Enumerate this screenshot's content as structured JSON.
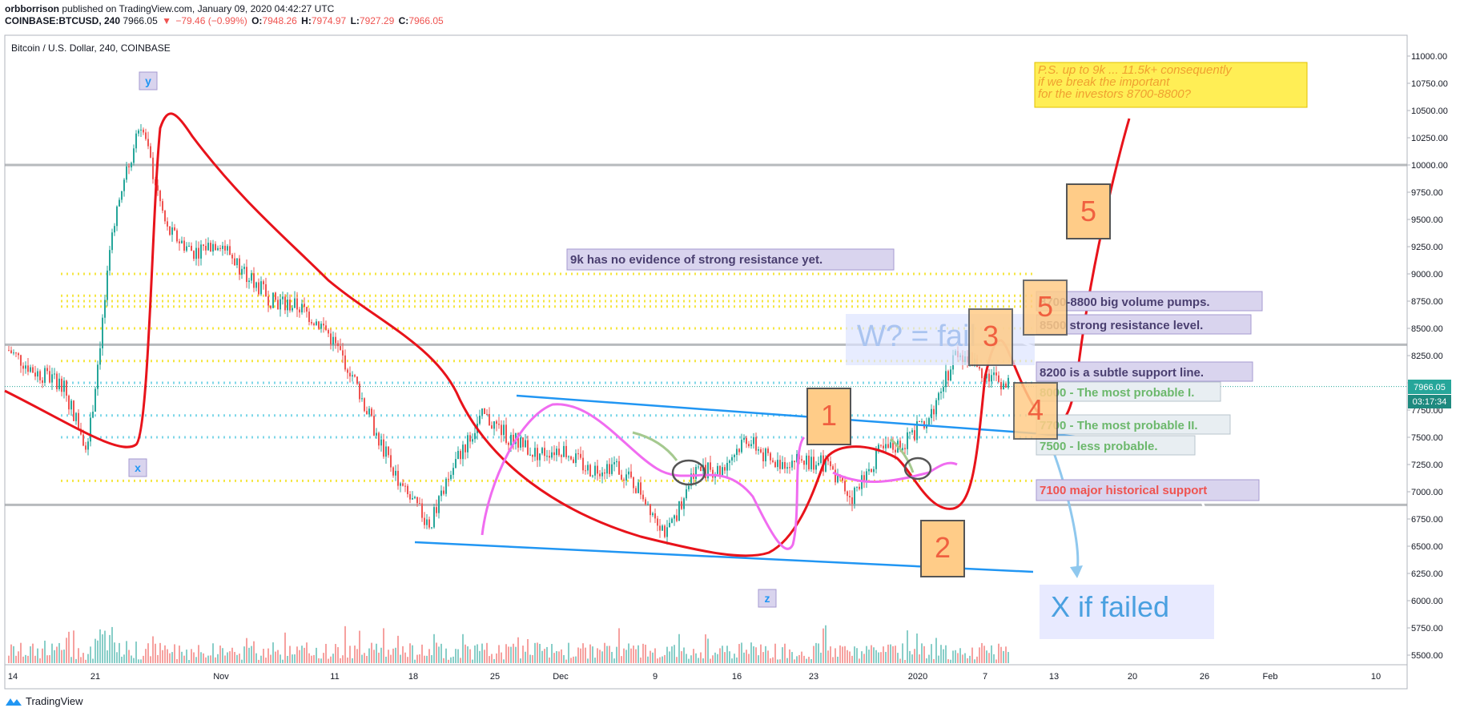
{
  "header": {
    "author": "orbborrison",
    "published": "published on TradingView.com, January 09, 2020 04:42:27 UTC",
    "symbol_line": "COINBASE:BTCUSD, 240",
    "last": "7966.05",
    "change": "−79.46 (−0.99%)",
    "o_label": "O:",
    "o": "7948.26",
    "h_label": "H:",
    "h": "7974.97",
    "l_label": "L:",
    "l": "7927.29",
    "c_label": "C:",
    "c": "7966.05"
  },
  "legend_title": "Bitcoin / U.S. Dollar, 240, COINBASE",
  "price_tag": "7966.05",
  "time_tag": "03:17:34",
  "footer": {
    "brand": "TradingView"
  },
  "colors": {
    "up": "#26a69a",
    "down": "#ef5350",
    "fib_yellow": "#f5e642",
    "cyan": "#7fd7e8",
    "wave_red": "#e8131b",
    "channel_blue": "#2196f3",
    "box_orange": "#ffcc88",
    "label_bg": "#d9d4ee"
  },
  "chart_data": {
    "type": "candlestick",
    "title": "Bitcoin / U.S. Dollar, 240, COINBASE",
    "ylim": [
      5400,
      11150
    ],
    "y_ticks": [
      "11000.00",
      "10750.00",
      "10500.00",
      "10250.00",
      "10000.00",
      "9750.00",
      "9500.00",
      "9250.00",
      "9000.00",
      "8750.00",
      "8500.00",
      "8250.00",
      "8000.00",
      "7750.00",
      "7500.00",
      "7250.00",
      "7000.00",
      "6750.00",
      "6500.00",
      "6250.00",
      "6000.00",
      "5750.00",
      "5500.00"
    ],
    "x_ticks": [
      "14",
      "21",
      "Nov",
      "11",
      "18",
      "25",
      "Dec",
      "9",
      "16",
      "23",
      "2020",
      "7",
      "13",
      "20",
      "26",
      "Feb",
      "10"
    ],
    "price_path": [
      [
        "14",
        8300
      ],
      [
        "17",
        8100
      ],
      [
        "21",
        8000
      ],
      [
        "23",
        7400
      ],
      [
        "25",
        9500
      ],
      [
        "26",
        10400
      ],
      [
        "28",
        9400
      ],
      [
        "Nov 1",
        9200
      ],
      [
        "Nov 5",
        9300
      ],
      [
        "Nov 8",
        9000
      ],
      [
        "Nov 11",
        8750
      ],
      [
        "Nov 14",
        8700
      ],
      [
        "Nov 18",
        8500
      ],
      [
        "Nov 20",
        8100
      ],
      [
        "Nov 22",
        7500
      ],
      [
        "Nov 24",
        7000
      ],
      [
        "Nov 25",
        6700
      ],
      [
        "Nov 27",
        7300
      ],
      [
        "Nov 29",
        7700
      ],
      [
        "Dec 1",
        7500
      ],
      [
        "Dec 5",
        7350
      ],
      [
        "Dec 9",
        7400
      ],
      [
        "Dec 11",
        7200
      ],
      [
        "Dec 13",
        7250
      ],
      [
        "Dec 16",
        7000
      ],
      [
        "Dec 18",
        6600
      ],
      [
        "Dec 19",
        7200
      ],
      [
        "Dec 22",
        7200
      ],
      [
        "Dec 23",
        7500
      ],
      [
        "Dec 25",
        7250
      ],
      [
        "Dec 28",
        7300
      ],
      [
        "Dec 30",
        7250
      ],
      [
        "Jan 2",
        6950
      ],
      [
        "Jan 3",
        7350
      ],
      [
        "Jan 5",
        7450
      ],
      [
        "Jan 6",
        7700
      ],
      [
        "Jan 7",
        8300
      ],
      [
        "Jan 8",
        8100
      ],
      [
        "Jan 9",
        7966
      ]
    ],
    "horizontal_lines": [
      10000,
      8350,
      6880
    ],
    "yellow_levels": [
      9000,
      8800,
      8750,
      8700,
      8500,
      8200,
      7100
    ],
    "cyan_levels": [
      8000,
      7700,
      7500
    ],
    "annotations": [
      "P.S. up to 9k ... 11.5k+ consequently",
      "if we break the important",
      "for the investors 8700-8800?",
      "9k has no evidence of strong resistance yet.",
      "8700-8800 big volume pumps.",
      "8500 strong resistance level.",
      "8200 is a subtle support line.",
      "8000 - The most probable I.",
      "7700 - The most probable II.",
      "7500 - less probable.",
      "7100 major historical support",
      "X if failed",
      "W? = fail"
    ],
    "wave_labels": [
      "y",
      "x",
      "z",
      "1",
      "2",
      "3",
      "4",
      "5",
      "5"
    ]
  }
}
